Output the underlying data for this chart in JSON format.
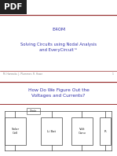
{
  "bg_color": "#ffffff",
  "pdf_label": "PDF",
  "pdf_bg": "#222222",
  "pdf_text_color": "#ffffff",
  "title_text": "E40M",
  "subtitle_text": "Solving Circuits using Nodal Analysis\nand EveryCircuit™",
  "title_color": "#3333aa",
  "divider_color": "#993333",
  "footer_text": "M. Horowitz, J. Plummer, R. Howe",
  "page_num": "1",
  "slide2_title": "How Do We Figure Out the\nVoltages and Currents?",
  "slide2_title_color": "#3333aa",
  "box_color": "#ffffff",
  "box_border": "#444444",
  "wire_color": "#444444",
  "diode_label": "Diode"
}
